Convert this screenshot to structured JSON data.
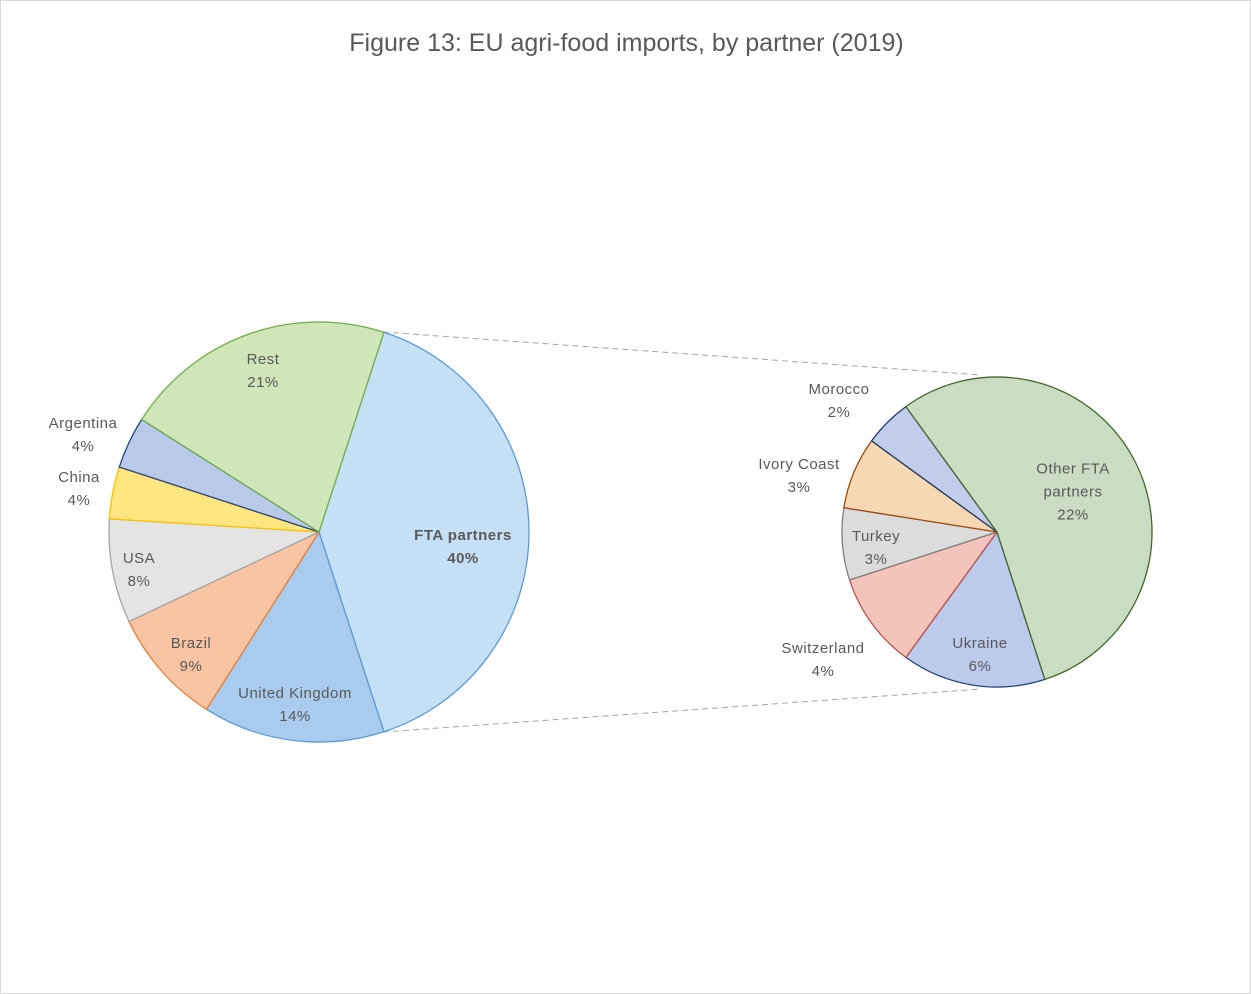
{
  "chart_data": [
    {
      "type": "pie",
      "title": "Figure 13: EU agri-food imports, by partner (2019)",
      "categories": [
        "FTA partners",
        "United Kingdom",
        "Brazil",
        "USA",
        "China",
        "Argentina",
        "Rest"
      ],
      "values": [
        40,
        14,
        9,
        8,
        4,
        4,
        21
      ],
      "value_labels": [
        "40%",
        "14%",
        "9%",
        "8%",
        "4%",
        "4%",
        "21%"
      ],
      "colors": [
        "#c5dff5",
        "#a9ccee",
        "#f9c4a4",
        "#e4e4e4",
        "#ffe680",
        "#b9c9ea",
        "#cfe6b8"
      ]
    },
    {
      "type": "pie",
      "categories": [
        "Ukraine",
        "Switzerland",
        "Turkey",
        "Ivory Coast",
        "Morocco",
        "Other FTA partners"
      ],
      "values": [
        6,
        4,
        3,
        3,
        2,
        22
      ],
      "value_labels": [
        "6%",
        "4%",
        "3%",
        "3%",
        "2%",
        "22%"
      ],
      "colors": [
        "#bccbec",
        "#f2c4bb",
        "#dcdcdc",
        "#f6d9b4",
        "#c1cdea",
        "#cadcc2"
      ]
    }
  ]
}
